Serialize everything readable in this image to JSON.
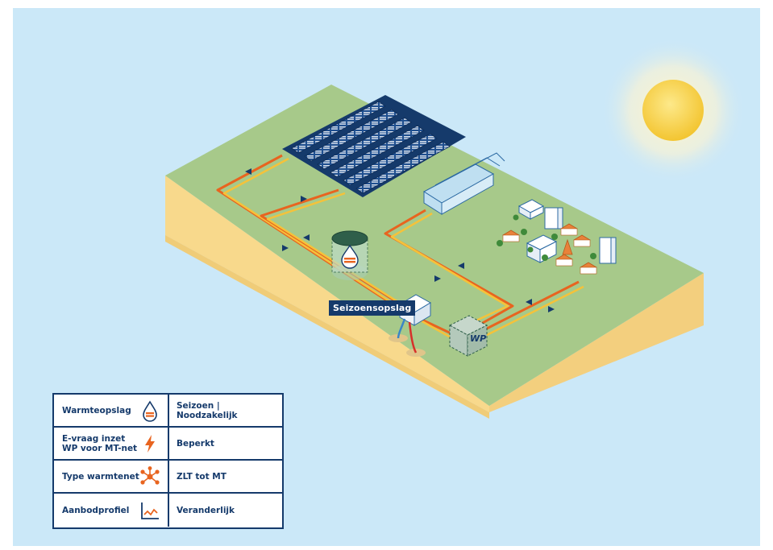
{
  "diagram": {
    "callout_label": "Seizoensopslag",
    "wp_label": "WP"
  },
  "legend": {
    "rows": [
      {
        "key": "Warmteopslag",
        "value": "Seizoen | Noodzakelijk",
        "icon": "water-drop-storage-icon"
      },
      {
        "key": "E-vraag inzet WP voor MT-net",
        "value": "Beperkt",
        "icon": "lightning-icon"
      },
      {
        "key": "Type warmtenet",
        "value": "ZLT tot MT",
        "icon": "network-nodes-icon"
      },
      {
        "key": "Aanbodprofiel",
        "value": "Veranderlijk",
        "icon": "line-chart-icon"
      }
    ]
  },
  "colors": {
    "sky": "#cbe8f8",
    "grass": "#a7c98a",
    "soil": "#f8d98c",
    "navy": "#153a6b",
    "pipe_hot": "#e8641f",
    "pipe_cold": "#f5c23a",
    "sun": "#f6cf3b"
  }
}
